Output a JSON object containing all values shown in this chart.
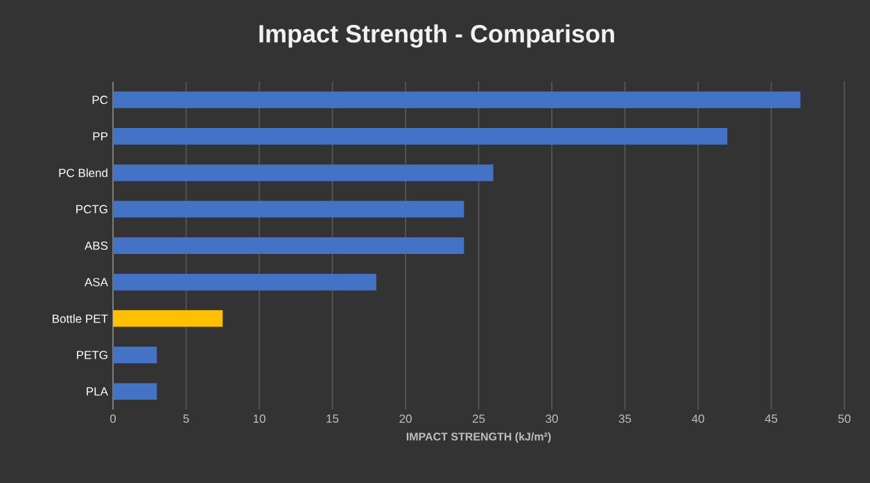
{
  "chart_data": {
    "type": "bar",
    "orientation": "horizontal",
    "title": "Impact Strength - Comparison",
    "xlabel": "IMPACT STRENGTH (kJ/m²)",
    "categories": [
      "PC",
      "PP",
      "PC Blend",
      "PCTG",
      "ABS",
      "ASA",
      "Bottle PET",
      "PETG",
      "PLA"
    ],
    "values": [
      47,
      42,
      26,
      24,
      24,
      18,
      7.5,
      3,
      3
    ],
    "colors": [
      "#4472c4",
      "#4472c4",
      "#4472c4",
      "#4472c4",
      "#4472c4",
      "#4472c4",
      "#ffc000",
      "#4472c4",
      "#4472c4"
    ],
    "xlim": [
      0,
      50
    ],
    "xticks": [
      0,
      5,
      10,
      15,
      20,
      25,
      30,
      35,
      40,
      45,
      50
    ],
    "grid": "x"
  }
}
